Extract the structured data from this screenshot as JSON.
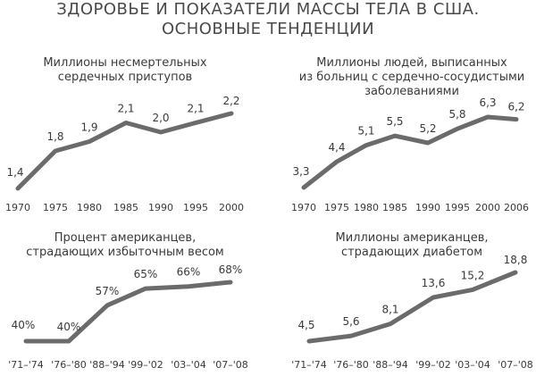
{
  "title": {
    "line1": "ЗДОРОВЬЕ И ПОКАЗАТЕЛИ МАССЫ ТЕЛА В США.",
    "line2": "ОСНОВНЫЕ ТЕНДЕНЦИИ"
  },
  "colors": {
    "line": "#6b6b6b",
    "text": "#3a3a3a"
  },
  "chart_data": [
    {
      "type": "line",
      "title": [
        "Миллионы несмертельных",
        "сердечных приступов"
      ],
      "categories": [
        "1970",
        "1975",
        "1980",
        "1985",
        "1990",
        "1995",
        "2000"
      ],
      "values": [
        1.4,
        1.8,
        1.9,
        2.1,
        2.0,
        2.1,
        2.2
      ],
      "labels": [
        "1,4",
        "1,8",
        "1,9",
        "2,1",
        "2,0",
        "2,1",
        "2,2"
      ],
      "ylim": [
        1.4,
        2.2
      ],
      "grid": false
    },
    {
      "type": "line",
      "title": [
        "Миллионы людей, выписанных",
        "из больниц с сердечно-сосудистыми",
        "заболеваниями"
      ],
      "categories": [
        "1970",
        "1975",
        "1980",
        "1985",
        "1990",
        "1995",
        "2000",
        "2006"
      ],
      "values": [
        3.3,
        4.4,
        5.1,
        5.5,
        5.2,
        5.8,
        6.3,
        6.2
      ],
      "labels": [
        "3,3",
        "4,4",
        "5,1",
        "5,5",
        "5,2",
        "5,8",
        "6,3",
        "6,2"
      ],
      "ylim": [
        3.3,
        6.3
      ],
      "grid": false
    },
    {
      "type": "line",
      "title": [
        "Процент американцев,",
        "страдающих избыточным весом"
      ],
      "categories": [
        "'71–'74",
        "'76–'80",
        "'88–'94",
        "'99–'02",
        "'03–'04",
        "'07–'08"
      ],
      "values": [
        40,
        40,
        57,
        65,
        66,
        68
      ],
      "labels": [
        "40%",
        "40%",
        "57%",
        "65%",
        "66%",
        "68%"
      ],
      "ylim": [
        40,
        68
      ],
      "grid": false
    },
    {
      "type": "line",
      "title": [
        "Миллионы американцев,",
        "страдающих диабетом"
      ],
      "categories": [
        "'71–'74",
        "'76–'80",
        "'88–'94",
        "'99–'02",
        "'03–'04",
        "'07–'08"
      ],
      "values": [
        4.5,
        5.6,
        8.1,
        13.6,
        15.2,
        18.8
      ],
      "labels": [
        "4,5",
        "5,6",
        "8,1",
        "13,6",
        "15,2",
        "18,8"
      ],
      "ylim": [
        4.5,
        18.8
      ],
      "grid": false
    }
  ]
}
